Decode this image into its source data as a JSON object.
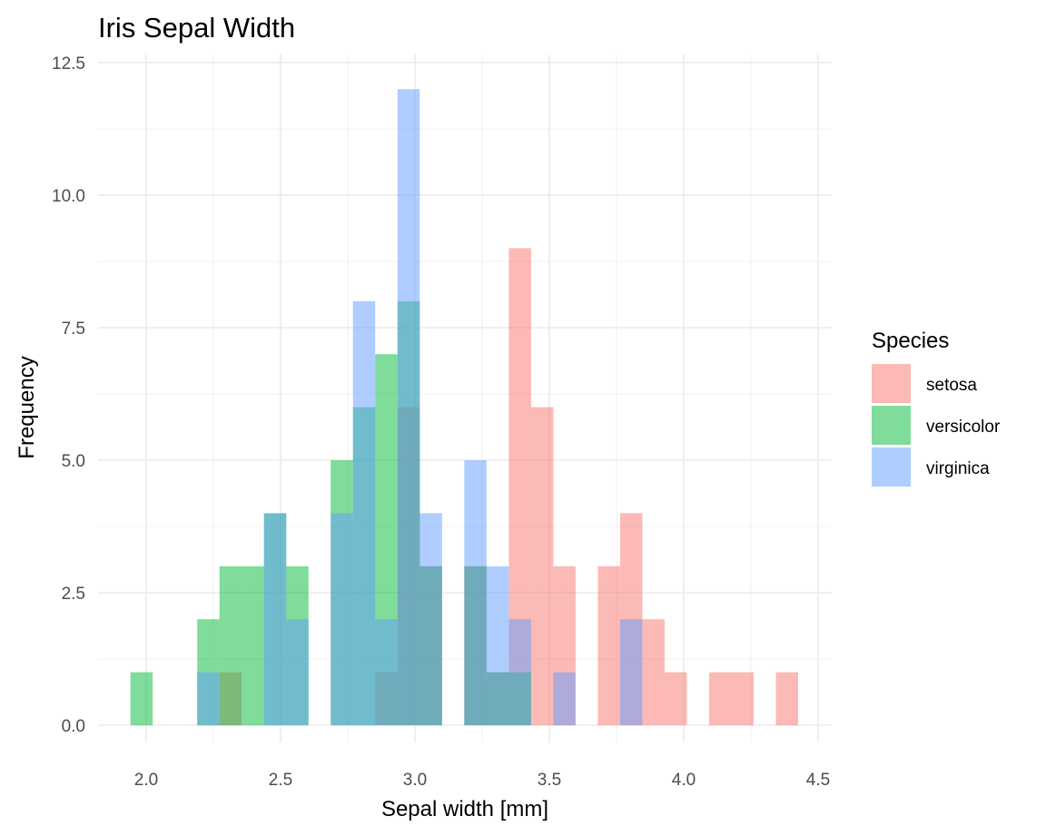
{
  "chart_data": {
    "type": "bar",
    "title": "Iris Sepal Width",
    "xlabel": "Sepal width [mm]",
    "ylabel": "Frequency",
    "xlim": [
      1.85,
      4.5
    ],
    "ylim": [
      0,
      12.5
    ],
    "bin_width": 0.0828,
    "bin_starts": [
      1.9414,
      2.0242,
      2.107,
      2.1898,
      2.2727,
      2.3555,
      2.4383,
      2.5211,
      2.6039,
      2.6867,
      2.7695,
      2.8523,
      2.9352,
      3.018,
      3.1008,
      3.1836,
      3.2664,
      3.3492,
      3.432,
      3.5148,
      3.5977,
      3.6805,
      3.7633,
      3.8461,
      3.9289,
      4.0117,
      4.0945,
      4.1773,
      4.2602,
      4.343
    ],
    "x_ticks": [
      "2.0",
      "2.5",
      "3.0",
      "3.5",
      "4.0",
      "4.5"
    ],
    "x_tick_values": [
      2.0,
      2.5,
      3.0,
      3.5,
      4.0,
      4.5
    ],
    "y_ticks": [
      "0.0",
      "2.5",
      "5.0",
      "7.5",
      "10.0",
      "12.5"
    ],
    "y_tick_values": [
      0,
      2.5,
      5,
      7.5,
      10,
      12.5
    ],
    "grid": true,
    "legend_title": "Species",
    "legend_position": "right",
    "series": [
      {
        "name": "setosa",
        "color": "#F8766D",
        "values": [
          0,
          0,
          0,
          0,
          1,
          0,
          0,
          0,
          0,
          0,
          0,
          1,
          6,
          3,
          0,
          3,
          1,
          9,
          6,
          3,
          0,
          3,
          4,
          2,
          1,
          0,
          1,
          1,
          0,
          1
        ]
      },
      {
        "name": "versicolor",
        "color": "#00BA38",
        "values": [
          1,
          0,
          0,
          2,
          3,
          3,
          4,
          3,
          0,
          5,
          6,
          7,
          8,
          3,
          0,
          3,
          1,
          1,
          0,
          0,
          0,
          0,
          0,
          0,
          0,
          0,
          0,
          0,
          0,
          0
        ]
      },
      {
        "name": "virginica",
        "color": "#619CFF",
        "values": [
          0,
          0,
          0,
          1,
          0,
          0,
          4,
          2,
          0,
          4,
          8,
          2,
          12,
          4,
          0,
          5,
          3,
          2,
          0,
          1,
          0,
          0,
          2,
          0,
          0,
          0,
          0,
          0,
          0,
          0
        ]
      }
    ]
  }
}
